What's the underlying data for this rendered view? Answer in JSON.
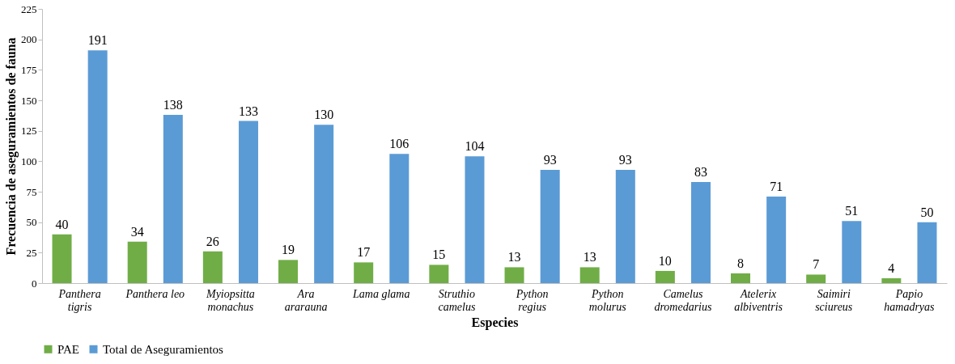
{
  "chart_data": {
    "type": "bar",
    "categories": [
      "Panthera\ntigris",
      "Panthera leo",
      "Myiopsitta\nmonachus",
      "Ara\nararauna",
      "Lama glama",
      "Struthio\ncamelus",
      "Python\nregius",
      "Python\nmolurus",
      "Camelus\ndromedarius",
      "Atelerix\nalbiventris",
      "Saimiri\nsciureus",
      "Papio\nhamadryas"
    ],
    "series": [
      {
        "name": "PAE",
        "color": "#70ad47",
        "values": [
          40,
          34,
          26,
          19,
          17,
          15,
          13,
          13,
          10,
          8,
          7,
          4
        ]
      },
      {
        "name": "Total de Aseguramientos",
        "color": "#5b9bd5",
        "values": [
          191,
          138,
          133,
          130,
          106,
          104,
          93,
          93,
          83,
          71,
          51,
          50
        ]
      }
    ],
    "xlabel": "Especies",
    "ylabel": "Frecuencia de aseguramientos de fauna",
    "ylim": [
      0,
      225
    ],
    "yticks": [
      0,
      25,
      50,
      75,
      100,
      125,
      150,
      175,
      200,
      225
    ],
    "data_labels": true,
    "legend": "bottom"
  }
}
